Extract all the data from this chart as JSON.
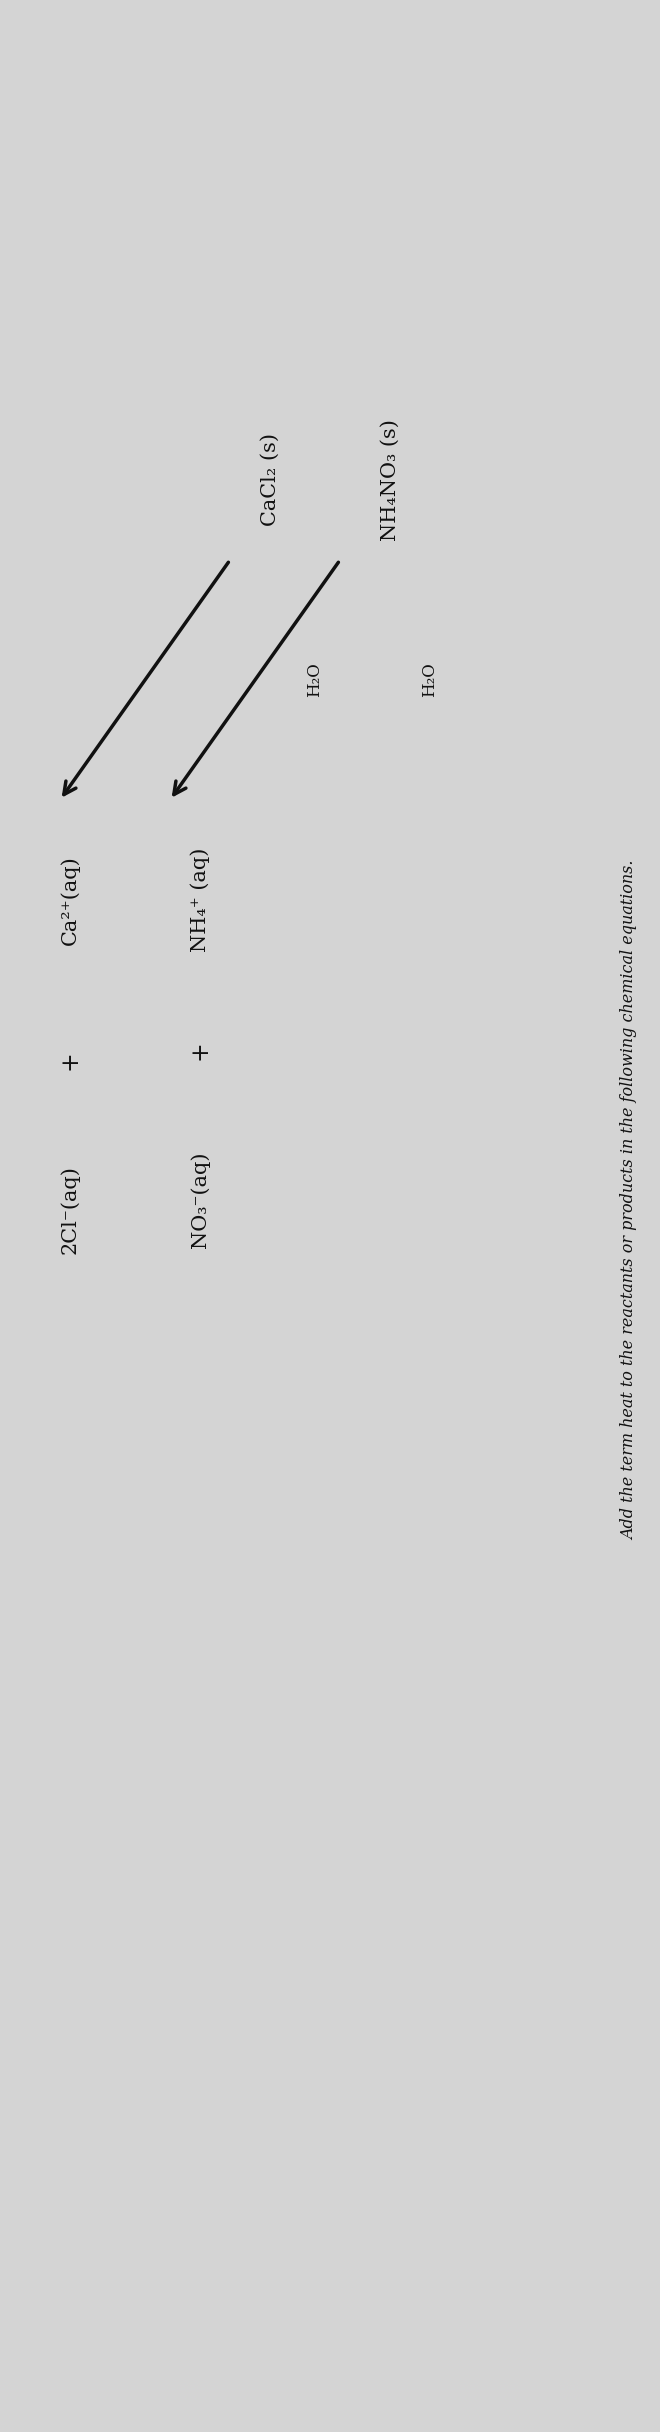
{
  "title": "Add the term heat to the reactants or products in the following chemical equations.",
  "title_fontsize": 11.5,
  "background_color": "#d4d4d4",
  "text_color": "#111111",
  "eq1_reactant": "NH₄NO₃ (s)",
  "eq1_arrow_label": "H₂O",
  "eq1_product1": "NH₄⁺ (aq)",
  "eq1_product2": "+",
  "eq1_product3": "NO₃⁻(aq)",
  "eq2_reactant": "CaCl₂ (s)",
  "eq2_arrow_label": "H₂O",
  "eq2_product1": "Ca²⁺(aq)",
  "eq2_product2": "+",
  "eq2_product3": "2Cl⁻(aq)",
  "eq_fontsize": 15,
  "label_fontsize": 12
}
